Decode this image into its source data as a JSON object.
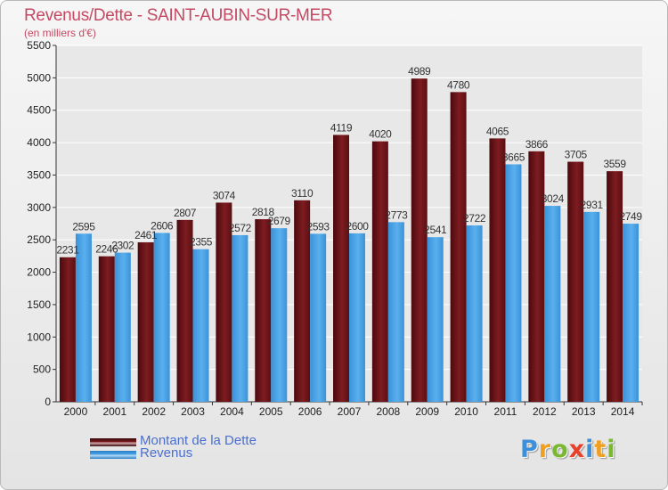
{
  "chart_data": {
    "type": "bar",
    "title": "Revenus/Dette - SAINT-AUBIN-SUR-MER",
    "subtitle": "(en milliers d'€)",
    "categories": [
      "2000",
      "2001",
      "2002",
      "2003",
      "2004",
      "2005",
      "2006",
      "2007",
      "2008",
      "2009",
      "2010",
      "2011",
      "2012",
      "2013",
      "2014"
    ],
    "series": [
      {
        "name": "Montant de la Dette",
        "color": "#7a1a1e",
        "values": [
          2231,
          2246,
          2461,
          2807,
          3074,
          2818,
          3110,
          4119,
          4020,
          4989,
          4780,
          4065,
          3866,
          3705,
          3559
        ]
      },
      {
        "name": "Revenus",
        "color": "#4aa3e6",
        "values": [
          2595,
          2302,
          2606,
          2355,
          2572,
          2679,
          2593,
          2600,
          2773,
          2541,
          2722,
          3665,
          3024,
          2931,
          2749
        ]
      }
    ],
    "data_labels": [
      [
        "2231",
        "2246",
        "2461",
        "2807",
        "3074",
        "2818",
        "3110",
        "4119",
        "4020",
        "4989",
        "4780",
        "4065",
        "3866",
        "3705",
        "3559"
      ],
      [
        "2595",
        "2302",
        "2606",
        "2355",
        "2572",
        "2679",
        "2593",
        "2600",
        "2773",
        "2541",
        "2722",
        "3665",
        "3024",
        "2931",
        "2749"
      ]
    ],
    "ylim": [
      0,
      5500
    ],
    "yticks": [
      0,
      500,
      1000,
      1500,
      2000,
      2500,
      3000,
      3500,
      4000,
      4500,
      5000,
      5500
    ],
    "grid": true,
    "legend_position": "bottom-left"
  },
  "logo": {
    "letters": [
      "P",
      "r",
      "o",
      "x",
      "i",
      "t",
      "i"
    ],
    "colors": [
      "#3c8fd8",
      "#f0a020",
      "#7ab830",
      "#e8402a",
      "#3c8fd8",
      "#f0a020",
      "#7ab830"
    ]
  }
}
